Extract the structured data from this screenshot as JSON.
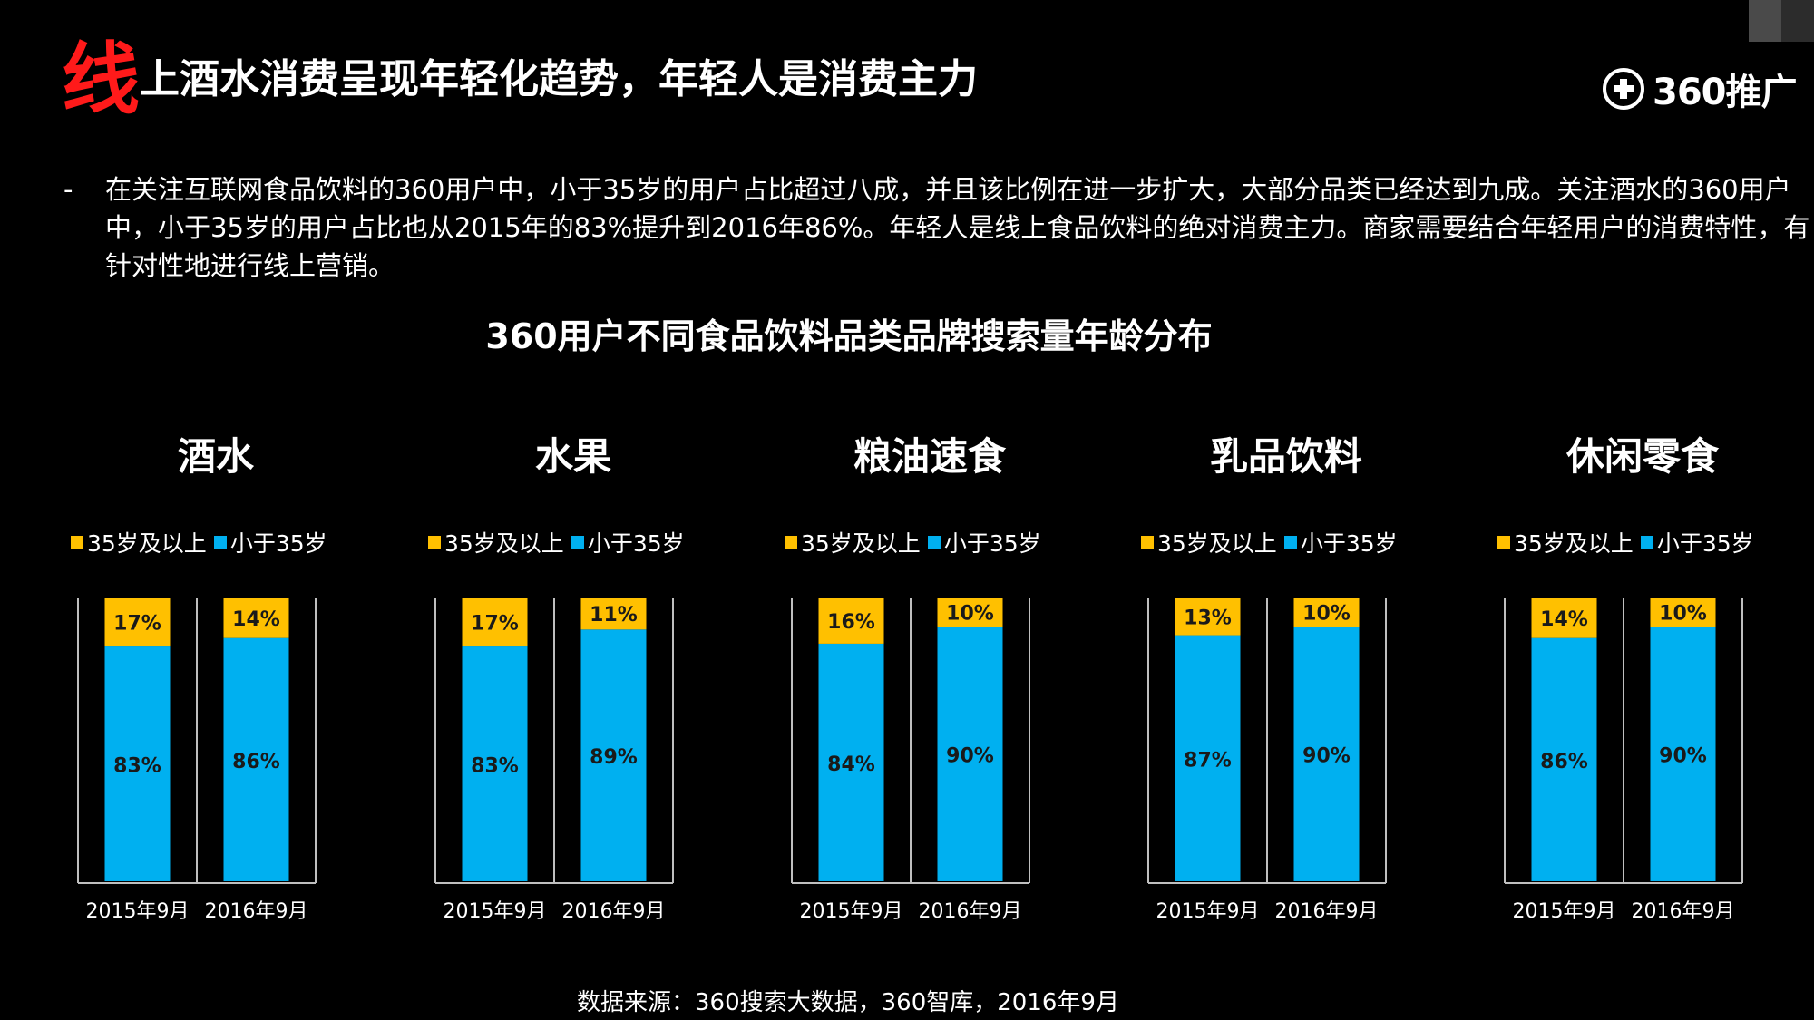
{
  "title": {
    "first_char": "线",
    "rest": "上酒水消费呈现年轻化趋势，年轻人是消费主力"
  },
  "logo": {
    "text": "360推广",
    "icon": "plus-circle-icon"
  },
  "summary": {
    "dash": "-",
    "text": "在关注互联网食品饮料的360用户中，小于35岁的用户占比超过八成，并且该比例在进一步扩大，大部分品类已经达到九成。关注酒水的360用户中，小于35岁的用户占比也从2015年的83%提升到2016年86%。年轻人是线上食品饮料的绝对消费主力。商家需要结合年轻用户的消费特性，有针对性地进行线上营销。"
  },
  "chart_title": "360用户不同食品饮料品类品牌搜索量年龄分布",
  "colors": {
    "older": "#FFC000",
    "younger": "#00B0F0",
    "axis": "#bfbfbf"
  },
  "chart_data": [
    {
      "type": "bar",
      "stacked": true,
      "title": "酒水",
      "categories": [
        "2015年9月",
        "2016年9月"
      ],
      "series": [
        {
          "name": "小于35岁",
          "values": [
            83,
            86
          ]
        },
        {
          "name": "35岁及以上",
          "values": [
            17,
            14
          ]
        }
      ],
      "legend": "top"
    },
    {
      "type": "bar",
      "stacked": true,
      "title": "水果",
      "categories": [
        "2015年9月",
        "2016年9月"
      ],
      "series": [
        {
          "name": "小于35岁",
          "values": [
            83,
            89
          ]
        },
        {
          "name": "35岁及以上",
          "values": [
            17,
            11
          ]
        }
      ],
      "legend": "top"
    },
    {
      "type": "bar",
      "stacked": true,
      "title": "粮油速食",
      "categories": [
        "2015年9月",
        "2016年9月"
      ],
      "series": [
        {
          "name": "小于35岁",
          "values": [
            84,
            90
          ]
        },
        {
          "name": "35岁及以上",
          "values": [
            16,
            10
          ]
        }
      ],
      "legend": "top"
    },
    {
      "type": "bar",
      "stacked": true,
      "title": "乳品饮料",
      "categories": [
        "2015年9月",
        "2016年9月"
      ],
      "series": [
        {
          "name": "小于35岁",
          "values": [
            87,
            90
          ]
        },
        {
          "name": "35岁及以上",
          "values": [
            13,
            10
          ]
        }
      ],
      "legend": "top"
    },
    {
      "type": "bar",
      "stacked": true,
      "title": "休闲零食",
      "categories": [
        "2015年9月",
        "2016年9月"
      ],
      "series": [
        {
          "name": "小于35岁",
          "values": [
            86,
            90
          ]
        },
        {
          "name": "35岁及以上",
          "values": [
            14,
            10
          ]
        }
      ],
      "legend": "top"
    }
  ],
  "source": "数据来源：360搜索大数据，360智库，2016年9月"
}
